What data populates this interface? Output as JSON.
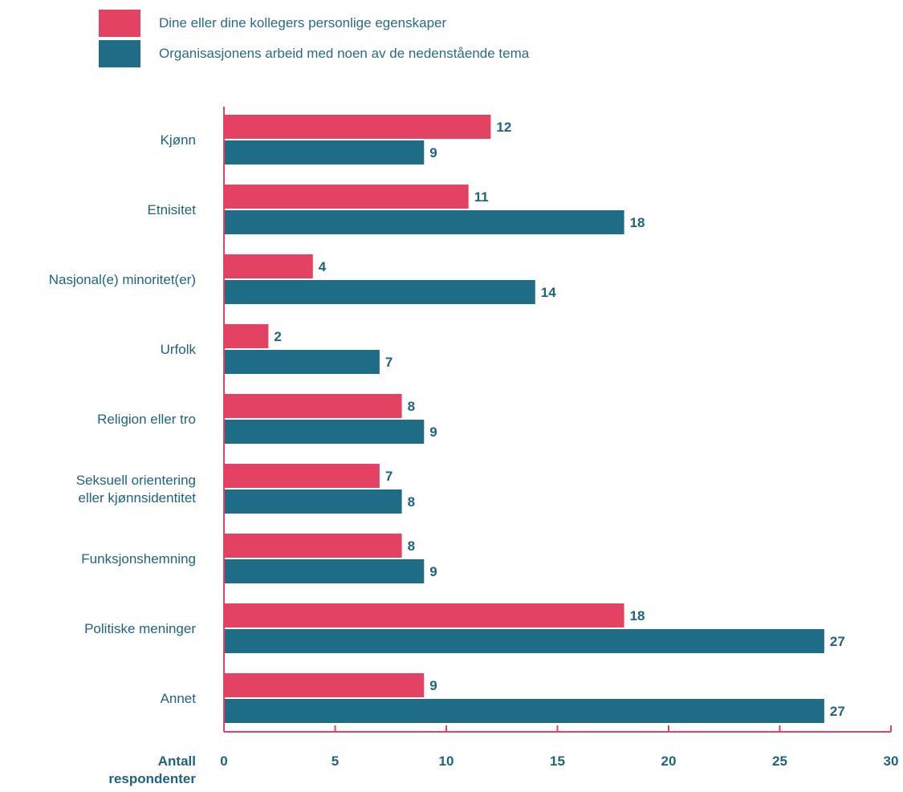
{
  "chart_data": {
    "type": "bar",
    "orientation": "horizontal",
    "categories": [
      [
        "Kjønn"
      ],
      [
        "Etnisitet"
      ],
      [
        "Nasjonal(e) minoritet(er)"
      ],
      [
        "Urfolk"
      ],
      [
        "Religion eller tro"
      ],
      [
        "Seksuell orientering",
        "eller kjønnsidentitet"
      ],
      [
        "Funksjonshemning"
      ],
      [
        "Politiske meninger"
      ],
      [
        "Annet"
      ]
    ],
    "series": [
      {
        "name": "Dine eller dine kollegers personlige egenskaper",
        "color": "#e34263",
        "values": [
          12,
          11,
          4,
          2,
          8,
          7,
          8,
          18,
          9
        ]
      },
      {
        "name": "Organisasjonens arbeid med noen av de nedenstående tema",
        "color": "#1f6c87",
        "values": [
          9,
          18,
          14,
          7,
          9,
          8,
          9,
          27,
          27
        ]
      }
    ],
    "xlabel": [
      "Antall",
      "respondenter"
    ],
    "xlim": [
      0,
      30
    ],
    "xticks": [
      0,
      5,
      10,
      15,
      20,
      25,
      30
    ],
    "axis_color": "#e34263",
    "text_color": "#1f6380",
    "legend_position": "top-left",
    "grid": false
  }
}
